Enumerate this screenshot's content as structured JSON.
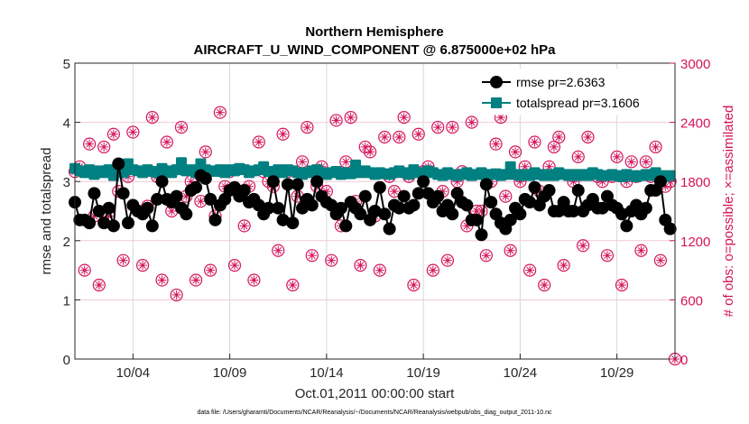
{
  "chart_data": {
    "type": "line",
    "title": "Northern Hemisphere",
    "subtitle": "AIRCRAFT_U_WIND_COMPONENT @ 6.875000e+02 hPa",
    "xlabel": "Oct.01,2011 00:00:00 start",
    "ylabel": "rmse and totalspread",
    "ylabel_right": "# of obs: o=possible; ×=assimilated",
    "footnote": "data file: /Users/gharamti/Documents/NCAR/Reanalysis/~/Documents/NCAR/Reanalysis/webpub/obs_diag_output_2011-10.nc",
    "xlim_days": [
      0,
      31
    ],
    "step_days": 0.25,
    "ylim": [
      0,
      5
    ],
    "ylim_right": [
      0,
      3000
    ],
    "x_ticks": [
      {
        "day": 3,
        "label": "10/04"
      },
      {
        "day": 8,
        "label": "10/09"
      },
      {
        "day": 13,
        "label": "10/14"
      },
      {
        "day": 18,
        "label": "10/19"
      },
      {
        "day": 23,
        "label": "10/24"
      },
      {
        "day": 28,
        "label": "10/29"
      }
    ],
    "y_ticks": [
      "0",
      "1",
      "2",
      "3",
      "4",
      "5"
    ],
    "y_ticks_right": [
      "0",
      "600",
      "1200",
      "1800",
      "2400",
      "3000"
    ],
    "grid": true,
    "legend_position": "top-right",
    "colors": {
      "rmse": "#000000",
      "totalspread": "#008080",
      "obs": "#d4145a",
      "grid_h": "#f0c8d8",
      "grid_v": "#d8d8d8"
    },
    "series": [
      {
        "name": "rmse pr=2.6363",
        "axis": "left",
        "marker": "circle",
        "values": [
          2.65,
          2.35,
          2.35,
          2.3,
          2.8,
          2.5,
          2.3,
          2.55,
          2.25,
          3.3,
          2.8,
          2.3,
          2.6,
          2.5,
          2.45,
          2.55,
          2.25,
          2.7,
          3.0,
          2.7,
          2.65,
          2.75,
          2.55,
          2.45,
          2.85,
          2.9,
          3.1,
          3.05,
          2.7,
          2.35,
          2.6,
          2.7,
          2.85,
          2.9,
          2.75,
          2.85,
          2.65,
          2.7,
          2.6,
          2.45,
          2.55,
          3.0,
          2.55,
          2.35,
          2.95,
          2.3,
          2.95,
          2.55,
          2.7,
          2.6,
          3.0,
          2.75,
          2.65,
          2.6,
          2.45,
          2.55,
          2.25,
          2.65,
          2.55,
          2.45,
          2.75,
          2.35,
          2.5,
          2.9,
          2.45,
          2.2,
          2.6,
          2.55,
          2.75,
          2.55,
          2.6,
          2.8,
          3.0,
          2.8,
          2.65,
          2.75,
          2.5,
          2.6,
          2.45,
          2.8,
          2.65,
          2.6,
          2.35,
          2.35,
          2.1,
          2.95,
          2.65,
          2.45,
          2.3,
          2.2,
          2.35,
          2.55,
          2.45,
          2.7,
          2.65,
          2.9,
          2.6,
          2.75,
          2.85,
          2.5,
          2.5,
          2.65,
          2.5,
          2.5,
          2.85,
          2.5,
          2.6,
          2.7,
          2.55,
          2.55,
          2.75,
          2.6,
          2.55,
          2.45,
          2.25,
          2.5,
          2.6,
          2.45,
          2.55,
          2.85,
          2.85,
          3.0,
          2.35,
          2.2
        ]
      },
      {
        "name": "totalspread pr=3.1606",
        "axis": "left",
        "marker": "square",
        "values": [
          3.22,
          3.18,
          3.15,
          3.2,
          3.12,
          3.18,
          3.15,
          3.2,
          3.1,
          3.25,
          3.15,
          3.3,
          3.2,
          3.18,
          3.15,
          3.2,
          3.17,
          3.15,
          3.22,
          3.18,
          3.15,
          3.2,
          3.32,
          3.18,
          3.2,
          3.15,
          3.3,
          3.2,
          3.18,
          3.17,
          3.2,
          3.15,
          3.2,
          3.18,
          3.22,
          3.2,
          3.15,
          3.18,
          3.2,
          3.25,
          3.17,
          3.15,
          3.2,
          3.15,
          3.2,
          3.18,
          3.15,
          3.12,
          3.15,
          3.18,
          3.2,
          3.15,
          3.12,
          3.15,
          3.17,
          3.12,
          3.15,
          3.13,
          3.28,
          3.15,
          3.18,
          3.15,
          3.12,
          3.15,
          3.13,
          3.12,
          3.15,
          3.18,
          3.15,
          3.12,
          3.2,
          3.15,
          3.12,
          3.18,
          3.15,
          3.12,
          3.1,
          3.15,
          3.12,
          3.1,
          3.12,
          3.15,
          3.1,
          3.12,
          3.15,
          3.1,
          3.12,
          3.13,
          3.1,
          3.12,
          3.25,
          3.12,
          3.1,
          3.12,
          3.1,
          3.15,
          3.12,
          3.1,
          3.12,
          3.1,
          3.15,
          3.12,
          3.1,
          3.12,
          3.1,
          3.12,
          3.1,
          3.15,
          3.12,
          3.1,
          3.1,
          3.12,
          3.1,
          3.08,
          3.12,
          3.1,
          3.08,
          3.1,
          3.12,
          3.1,
          3.15,
          3.1,
          3.08,
          3.1
        ]
      },
      {
        "name": "obs possible / assimilated",
        "axis": "right",
        "marker": "circle-asterisk",
        "values": [
          1900,
          1950,
          900,
          2180,
          1450,
          750,
          2150,
          1450,
          2280,
          1700,
          1000,
          1850,
          2300,
          1500,
          950,
          1550,
          2450,
          1850,
          800,
          2200,
          1500,
          650,
          2350,
          1650,
          1800,
          800,
          1600,
          2100,
          900,
          1450,
          2500,
          1750,
          1900,
          950,
          1700,
          1350,
          1750,
          800,
          2200,
          1900,
          1800,
          1750,
          1100,
          2280,
          1900,
          750,
          1650,
          2000,
          2350,
          1050,
          1750,
          1950,
          1700,
          1000,
          2420,
          1350,
          2000,
          2450,
          1600,
          950,
          2150,
          2100,
          1450,
          900,
          2250,
          1850,
          1700,
          2250,
          2450,
          1850,
          750,
          2280,
          1900,
          1950,
          900,
          2350,
          1700,
          1000,
          2350,
          1800,
          1900,
          1350,
          2400,
          1500,
          1500,
          1050,
          1800,
          2180,
          2450,
          1650,
          1100,
          2100,
          1800,
          1950,
          900,
          2200,
          1700,
          750,
          1950,
          2150,
          2250,
          950,
          1500,
          1800,
          2050,
          1150,
          2250,
          1600,
          1850,
          1800,
          1050,
          1850,
          2050,
          750,
          1800,
          2000,
          1850,
          1100,
          2000,
          1850,
          2150,
          1000,
          1750,
          1800,
          0
        ]
      }
    ]
  }
}
